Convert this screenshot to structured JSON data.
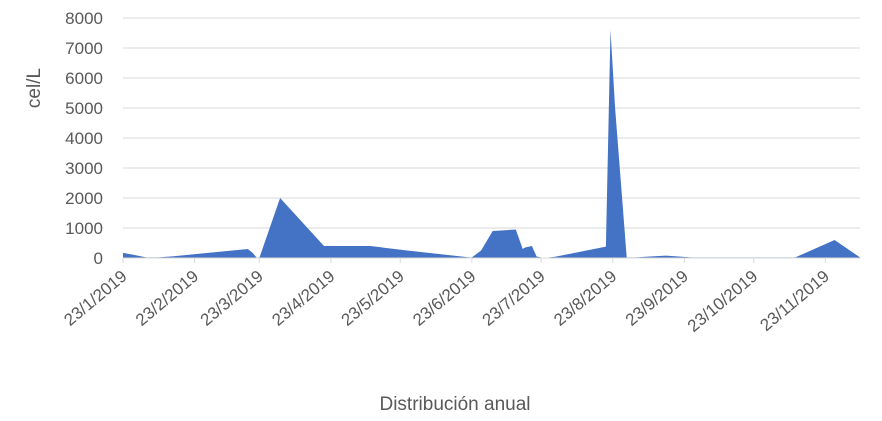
{
  "chart_data": {
    "type": "area",
    "title": "",
    "xlabel": "Distribución anual",
    "ylabel": "cel/L",
    "ylim": [
      0,
      8000
    ],
    "yticks": [
      0,
      1000,
      2000,
      3000,
      4000,
      5000,
      6000,
      7000,
      8000
    ],
    "xlim": [
      "2019-01-23",
      "2019-12-08"
    ],
    "xticks": [
      "23/1/2019",
      "23/2/2019",
      "23/3/2019",
      "23/4/2019",
      "23/5/2019",
      "23/6/2019",
      "23/7/2019",
      "23/8/2019",
      "23/9/2019",
      "23/10/2019",
      "23/11/2019"
    ],
    "xtick_dates": [
      "2019-01-23",
      "2019-02-23",
      "2019-03-23",
      "2019-04-23",
      "2019-05-23",
      "2019-06-23",
      "2019-07-23",
      "2019-08-23",
      "2019-09-23",
      "2019-10-23",
      "2019-11-23"
    ],
    "grid": true,
    "color": "#4472c4",
    "series": [
      {
        "x": [
          "2019-01-23",
          "2019-01-28",
          "2019-02-02",
          "2019-02-07",
          "2019-02-14",
          "2019-03-18",
          "2019-03-20",
          "2019-03-22",
          "2019-03-23",
          "2019-04-01",
          "2019-04-20",
          "2019-05-10",
          "2019-05-26",
          "2019-06-22",
          "2019-06-23",
          "2019-06-27",
          "2019-07-02",
          "2019-07-12",
          "2019-07-15",
          "2019-07-16",
          "2019-07-19",
          "2019-07-21",
          "2019-07-24",
          "2019-07-29",
          "2019-08-20",
          "2019-08-22",
          "2019-08-24",
          "2019-08-29",
          "2019-09-01",
          "2019-09-02",
          "2019-09-08",
          "2019-09-15",
          "2019-09-26",
          "2019-10-07",
          "2019-10-22",
          "2019-11-10",
          "2019-11-27",
          "2019-12-08"
        ],
        "y": [
          170,
          100,
          20,
          20,
          60,
          300,
          180,
          0,
          0,
          2000,
          400,
          400,
          250,
          20,
          20,
          250,
          900,
          950,
          300,
          350,
          400,
          50,
          0,
          40,
          380,
          7600,
          5000,
          20,
          20,
          20,
          50,
          80,
          20,
          20,
          20,
          20,
          600,
          20
        ]
      }
    ]
  }
}
